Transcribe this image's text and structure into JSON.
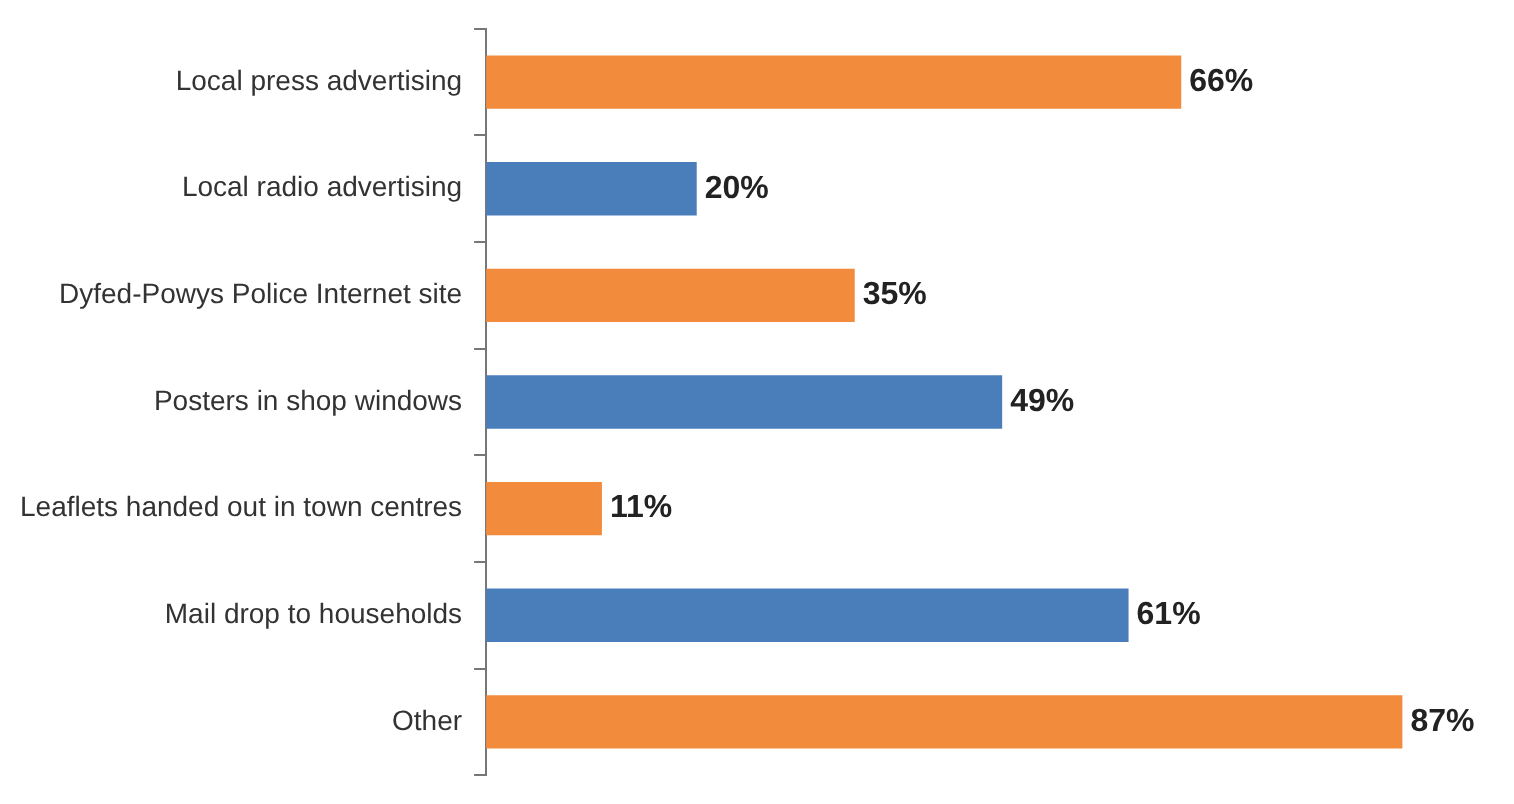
{
  "chart_data": {
    "type": "bar",
    "orientation": "horizontal",
    "categories": [
      "Local press advertising",
      "Local radio advertising",
      "Dyfed-Powys Police Internet site",
      "Posters in shop windows",
      "Leaflets handed out in town centres",
      "Mail drop to households",
      "Other"
    ],
    "values": [
      66,
      20,
      35,
      49,
      11,
      61,
      87
    ],
    "colors": [
      "#f38b3c",
      "#4a7ebb",
      "#f38b3c",
      "#4a7ebb",
      "#f38b3c",
      "#4a7ebb",
      "#f38b3c"
    ],
    "value_labels": [
      "66%",
      "20%",
      "35%",
      "49%",
      "11%",
      "61%",
      "87%"
    ],
    "tick_labels": "y",
    "grid": false,
    "legend": false
  }
}
